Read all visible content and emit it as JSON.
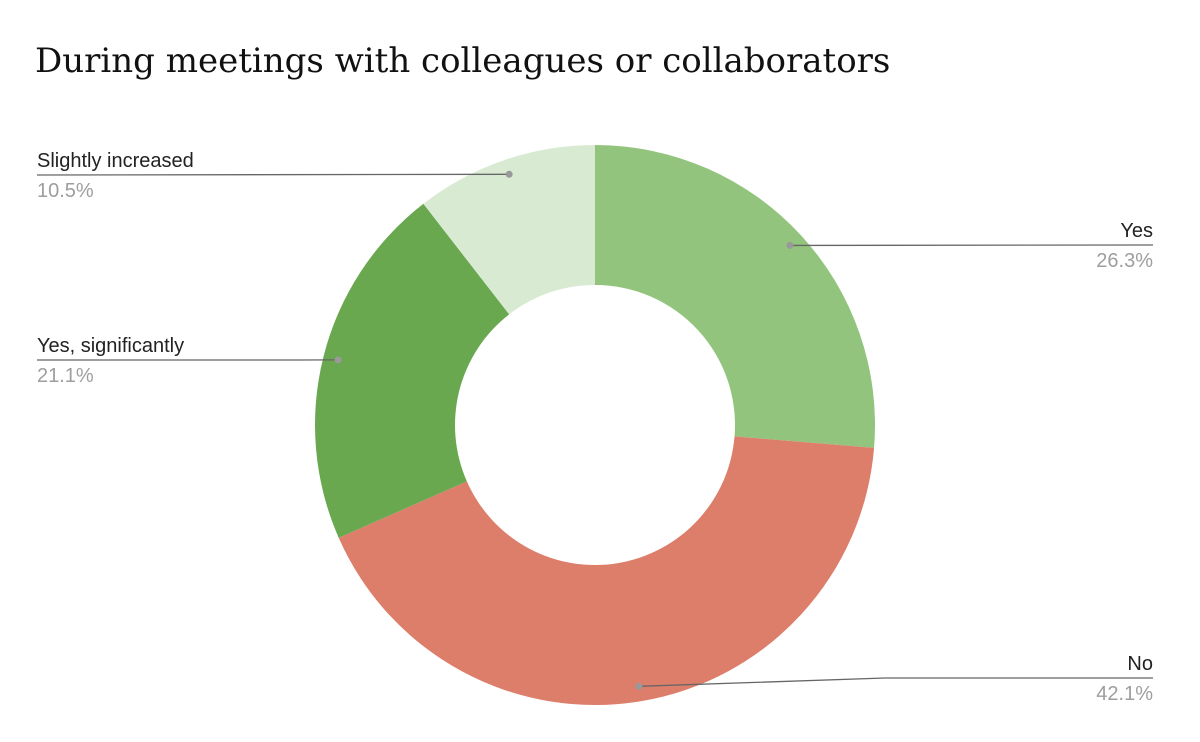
{
  "chart_data": {
    "type": "donut",
    "title": "During meetings with colleagues or collaborators",
    "categories": [
      "Yes",
      "No",
      "Yes, significantly",
      "Slightly increased"
    ],
    "values": [
      26.3,
      42.1,
      21.1,
      10.5
    ],
    "value_labels": [
      "26.3%",
      "42.1%",
      "21.1%",
      "10.5%"
    ],
    "colors": [
      "#93c47d",
      "#dd7e6b",
      "#6aa84f",
      "#d9ead3"
    ]
  }
}
